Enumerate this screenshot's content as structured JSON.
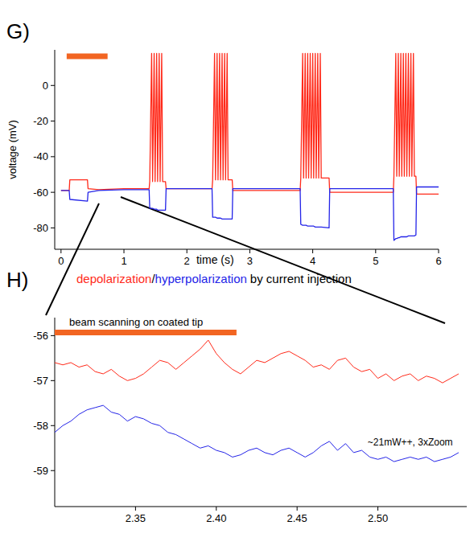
{
  "chart_data": [
    {
      "type": "line",
      "title": "G)",
      "x_label": "time (s)",
      "y_label": "voltage (mV)",
      "xlim": [
        -0.1,
        6
      ],
      "ylim": [
        -92,
        20
      ],
      "xticks": [
        0,
        1,
        2,
        3,
        4,
        5,
        6
      ],
      "yticks": [
        -80,
        -60,
        -40,
        -20,
        0
      ],
      "x": [
        0,
        0.13,
        0.14,
        0.42,
        0.43,
        0.6,
        1,
        1.4,
        1.41,
        1.44,
        1.455,
        1.48,
        1.495,
        1.52,
        1.535,
        1.56,
        1.575,
        1.6,
        1.615,
        1.66,
        1.67,
        2.4,
        2.41,
        2.44,
        2.455,
        2.48,
        2.495,
        2.52,
        2.535,
        2.56,
        2.575,
        2.6,
        2.615,
        2.64,
        2.655,
        2.72,
        2.73,
        3.8,
        3.81,
        3.84,
        3.855,
        3.88,
        3.895,
        3.92,
        3.935,
        3.96,
        3.975,
        4,
        4.015,
        4.04,
        4.055,
        4.08,
        4.095,
        4.12,
        4.135,
        4.26,
        4.27,
        5.28,
        5.29,
        5.32,
        5.335,
        5.36,
        5.375,
        5.4,
        5.415,
        5.44,
        5.455,
        5.48,
        5.495,
        5.52,
        5.535,
        5.56,
        5.575,
        5.6,
        5.615,
        5.64,
        5.65,
        6
      ],
      "series": [
        {
          "name": "depolarization",
          "color": "#ff2a1a",
          "values": [
            -59,
            -59,
            -53,
            -53,
            -58,
            -58.5,
            -58,
            -58,
            -54,
            18,
            -54,
            18,
            -54,
            18,
            -54,
            18,
            -54,
            18,
            -54,
            -54,
            -58,
            -58,
            -53,
            18,
            -53,
            18,
            -53,
            18,
            -53,
            18,
            -53,
            18,
            -53,
            18,
            -53,
            -53,
            -59,
            -59,
            -52,
            18,
            -52,
            18,
            -52,
            18,
            -52,
            18,
            -52,
            18,
            -52,
            18,
            -52,
            18,
            -52,
            18,
            -52,
            -52,
            -60,
            -60,
            -51,
            18,
            -51,
            18,
            -51,
            18,
            -51,
            18,
            -51,
            18,
            -51,
            18,
            -51,
            18,
            -51,
            18,
            -51,
            -51,
            -61,
            -61
          ]
        },
        {
          "name": "hyperpolarization",
          "color": "#2424e8",
          "values": [
            -59,
            -59,
            -64,
            -65,
            -60,
            -59,
            -58.5,
            -58.5,
            -69,
            -69,
            -69,
            -69.5,
            -69.5,
            -69.5,
            -70,
            -70,
            -70,
            -70,
            -70,
            -70,
            -58,
            -58,
            -74,
            -74,
            -74,
            -74.5,
            -74.5,
            -74.5,
            -74.5,
            -75,
            -75,
            -75,
            -75,
            -75,
            -75,
            -75,
            -58,
            -58,
            -78,
            -78.5,
            -78.5,
            -78.5,
            -78.5,
            -79,
            -79,
            -79,
            -79,
            -79,
            -79,
            -79.5,
            -79.5,
            -79.5,
            -79.5,
            -79.5,
            -79.5,
            -80,
            -58,
            -58,
            -87,
            -86,
            -86,
            -85.5,
            -85.5,
            -85,
            -85,
            -85,
            -85,
            -85,
            -85,
            -84.5,
            -84.5,
            -84.5,
            -84.5,
            -84.5,
            -84.5,
            -84,
            -57,
            -57
          ]
        }
      ],
      "annotations": [
        {
          "x": [
            0.09,
            0.74
          ],
          "y": 16.4,
          "color": "#f26522"
        }
      ],
      "caption": {
        "separator": "/",
        "suffix": "by current injection"
      }
    },
    {
      "type": "line",
      "title": "H)",
      "xlim": [
        2.3,
        2.555
      ],
      "ylim": [
        -59.8,
        -55.6
      ],
      "xticks": [
        2.35,
        {
          "value": 2.4,
          "label": "2.40"
        },
        2.45,
        {
          "value": 2.5,
          "label": "2.50"
        }
      ],
      "yticks": [
        -59,
        -58,
        -57,
        -56
      ],
      "x": [
        2.3,
        2.305,
        2.31,
        2.315,
        2.32,
        2.325,
        2.33,
        2.335,
        2.34,
        2.345,
        2.35,
        2.355,
        2.36,
        2.365,
        2.37,
        2.375,
        2.38,
        2.385,
        2.39,
        2.395,
        2.4,
        2.405,
        2.41,
        2.415,
        2.42,
        2.425,
        2.43,
        2.435,
        2.44,
        2.445,
        2.45,
        2.455,
        2.46,
        2.465,
        2.47,
        2.475,
        2.48,
        2.485,
        2.49,
        2.495,
        2.5,
        2.505,
        2.51,
        2.515,
        2.52,
        2.525,
        2.53,
        2.535,
        2.54,
        2.545,
        2.55
      ],
      "series": [
        {
          "name": "depolarization",
          "color": "#ff2a1a",
          "values": [
            -56.6,
            -56.65,
            -56.6,
            -56.7,
            -56.65,
            -56.8,
            -56.85,
            -56.75,
            -56.9,
            -57.0,
            -56.95,
            -56.85,
            -56.7,
            -56.55,
            -56.6,
            -56.75,
            -56.6,
            -56.45,
            -56.3,
            -56.1,
            -56.4,
            -56.6,
            -56.75,
            -56.85,
            -56.7,
            -56.55,
            -56.6,
            -56.5,
            -56.4,
            -56.35,
            -56.45,
            -56.55,
            -56.7,
            -56.65,
            -56.75,
            -56.55,
            -56.5,
            -56.7,
            -56.8,
            -56.75,
            -56.95,
            -56.85,
            -57.0,
            -56.9,
            -56.85,
            -57.0,
            -56.9,
            -56.95,
            -57.05,
            -56.95,
            -56.85
          ]
        },
        {
          "name": "hyperpolarization",
          "color": "#2424e8",
          "values": [
            -58.15,
            -58.0,
            -57.9,
            -57.75,
            -57.65,
            -57.6,
            -57.55,
            -57.7,
            -57.75,
            -57.9,
            -57.8,
            -57.85,
            -57.95,
            -58.0,
            -58.15,
            -58.2,
            -58.3,
            -58.4,
            -58.5,
            -58.45,
            -58.55,
            -58.6,
            -58.7,
            -58.65,
            -58.55,
            -58.5,
            -58.6,
            -58.65,
            -58.55,
            -58.5,
            -58.6,
            -58.7,
            -58.6,
            -58.45,
            -58.35,
            -58.55,
            -58.4,
            -58.6,
            -58.55,
            -58.7,
            -58.75,
            -58.7,
            -58.8,
            -58.75,
            -58.7,
            -58.75,
            -58.7,
            -58.8,
            -58.75,
            -58.7,
            -58.6
          ]
        }
      ],
      "annotations": [
        {
          "text": "beam scanning on coated tip",
          "x": [
            2.3,
            2.4125
          ],
          "y": -55.93,
          "color": "#f26522"
        },
        {
          "text": "~21mW++, 3xZoom",
          "x": 2.52,
          "y": -58.45
        }
      ]
    }
  ]
}
